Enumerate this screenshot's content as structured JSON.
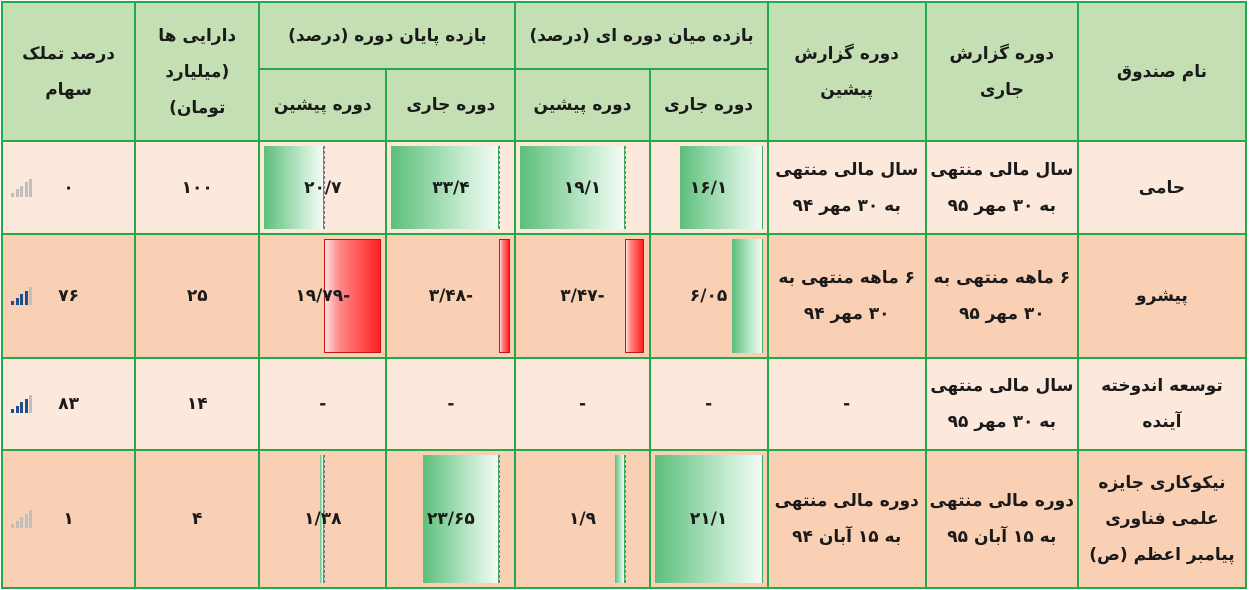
{
  "headers": {
    "fund_name": "نام صندوق",
    "current_period": "دوره گزارش جاری",
    "previous_period": "دوره گزارش پیشین",
    "interim_return": "بازده میان دوره ای (درصد)",
    "end_return": "بازده پایان دوره (درصد)",
    "assets": "دارایی ها (میلیارد تومان)",
    "ownership": "درصد تملک سهام",
    "sub_current": "دوره جاری",
    "sub_previous": "دوره پیشین"
  },
  "rows": [
    {
      "name": "حامی",
      "current_period": "سال مالی منتهی به ۳۰ مهر ۹۵",
      "previous_period": "سال مالی منتهی به ۳۰ مهر ۹۴",
      "interim_current": "۱۶/۱",
      "interim_previous": "۱۹/۱",
      "end_current": "۳۳/۴",
      "end_previous": "۲۰/۷",
      "assets": "۱۰۰",
      "ownership": "۰"
    },
    {
      "name": "پیشرو",
      "current_period": "۶ ماهه منتهی به ۳۰ مهر ۹۵",
      "previous_period": "۶ ماهه منتهی به ۳۰ مهر ۹۴",
      "interim_current": "۶/۰۵",
      "interim_previous": "-۳/۴۷",
      "end_current": "-۳/۴۸",
      "end_previous": "-۱۹/۷۹",
      "assets": "۲۵",
      "ownership": "۷۶"
    },
    {
      "name": "توسعه اندوخته آینده",
      "current_period": "سال مالی منتهی به ۳۰ مهر ۹۵",
      "previous_period": "-",
      "interim_current": "-",
      "interim_previous": "-",
      "end_current": "-",
      "end_previous": "-",
      "assets": "۱۴",
      "ownership": "۸۳"
    },
    {
      "name": "نیکوکاری جایزه علمی فناوری پیامبر اعظم (ص)",
      "current_period": "دوره مالی منتهی به ۱۵ آبان ۹۵",
      "previous_period": "دوره مالی منتهی به ۱۵ آبان ۹۴",
      "interim_current": "۲۱/۱",
      "interim_previous": "۱/۹",
      "end_current": "۲۳/۶۵",
      "end_previous": "۱/۳۸",
      "assets": "۴",
      "ownership": "۱"
    }
  ],
  "bars": {
    "interim_current": [
      16.1,
      6.05,
      null,
      21.1
    ],
    "interim_previous": [
      19.1,
      -3.47,
      null,
      1.9
    ],
    "end_current": [
      33.4,
      -3.48,
      null,
      23.65
    ],
    "end_previous": [
      20.7,
      -19.79,
      null,
      1.38
    ]
  },
  "signal_levels": [
    0,
    4,
    4,
    0
  ],
  "colors": {
    "border": "#24a84a",
    "header_bg": "#c5dfb4",
    "row_light": "#fce9dc",
    "row_dark": "#fad0b4",
    "bar_positive": "#5cbf7a",
    "bar_negative": "#ff2020",
    "signal_on": "#1f4e8c",
    "signal_off": "#bfbfbf"
  },
  "icons": {
    "ownership_indicator": "signal-bars-icon"
  }
}
